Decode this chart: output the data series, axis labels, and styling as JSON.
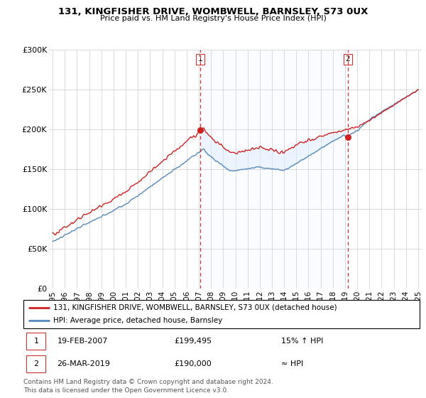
{
  "title": "131, KINGFISHER DRIVE, WOMBWELL, BARNSLEY, S73 0UX",
  "subtitle": "Price paid vs. HM Land Registry's House Price Index (HPI)",
  "legend_line1": "131, KINGFISHER DRIVE, WOMBWELL, BARNSLEY, S73 0UX (detached house)",
  "legend_line2": "HPI: Average price, detached house, Barnsley",
  "annotation1_date": "19-FEB-2007",
  "annotation1_price": "£199,495",
  "annotation1_hpi": "15% ↑ HPI",
  "annotation2_date": "26-MAR-2019",
  "annotation2_price": "£190,000",
  "annotation2_hpi": "≈ HPI",
  "footer": "Contains HM Land Registry data © Crown copyright and database right 2024.\nThis data is licensed under the Open Government Licence v3.0.",
  "sale1_year": 2007.13,
  "sale1_price": 199495,
  "sale2_year": 2019.23,
  "sale2_price": 190000,
  "ylim": [
    0,
    300000
  ],
  "yticks": [
    0,
    50000,
    100000,
    150000,
    200000,
    250000,
    300000
  ],
  "ytick_labels": [
    "£0",
    "£50K",
    "£100K",
    "£150K",
    "£200K",
    "£250K",
    "£300K"
  ],
  "hpi_color": "#5588bb",
  "price_color": "#cc2222",
  "fill_color": "#ddeeff",
  "vline_color": "#cc3333",
  "bg_color": "#ffffff",
  "grid_color": "#cccccc",
  "xlim_left": 1994.7,
  "xlim_right": 2025.3
}
